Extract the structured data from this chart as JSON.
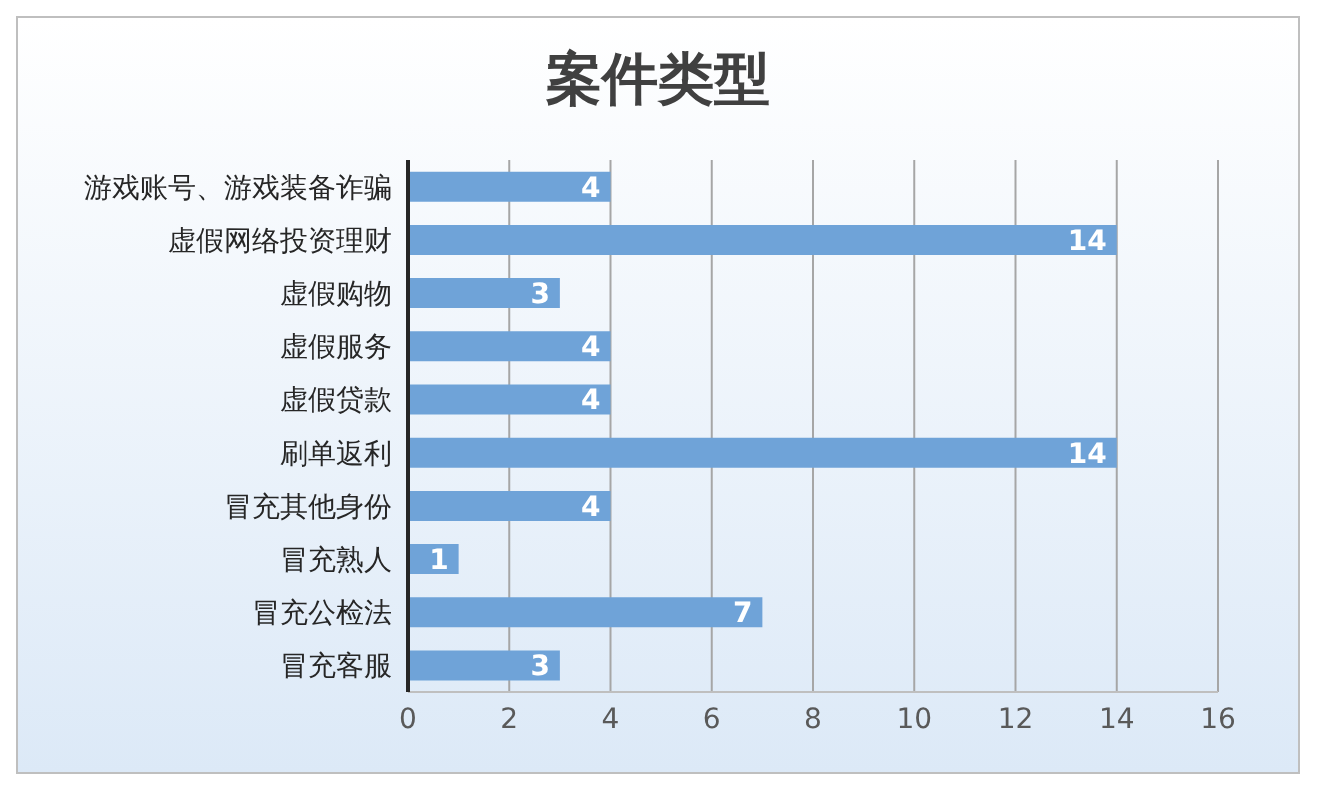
{
  "chart_data": {
    "type": "bar",
    "title": "案件类型",
    "orientation": "horizontal",
    "categories": [
      "游戏账号、游戏装备诈骗",
      "虚假网络投资理财",
      "虚假购物",
      "虚假服务",
      "虚假贷款",
      "刷单返利",
      "冒充其他身份",
      "冒充熟人",
      "冒充公检法",
      "冒充客服"
    ],
    "values": [
      4,
      14,
      3,
      4,
      4,
      14,
      4,
      1,
      7,
      3
    ],
    "color": "#6fa3d8",
    "xlim": [
      0,
      16
    ],
    "xticks": [
      0,
      2,
      4,
      6,
      8,
      10,
      12,
      14,
      16
    ],
    "grid": "x",
    "data_labels": true
  }
}
